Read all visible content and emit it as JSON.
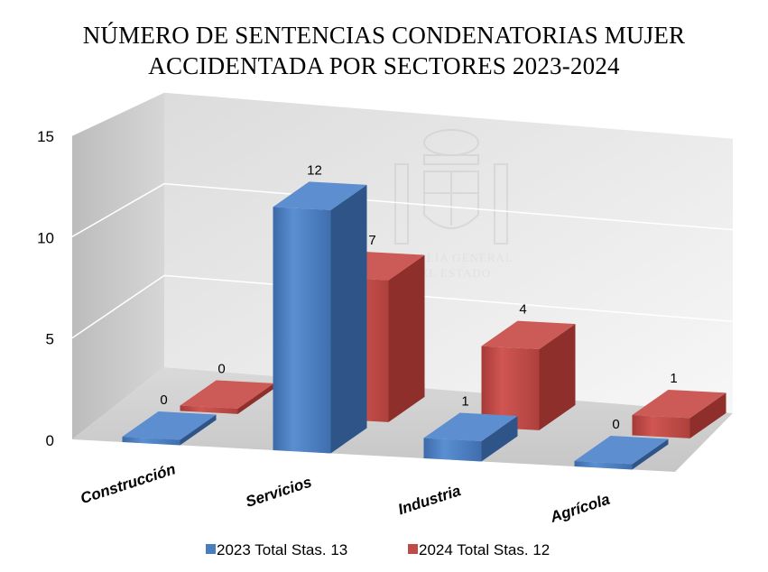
{
  "chart_data": {
    "type": "bar",
    "title_line1": "NÚMERO DE SENTENCIAS CONDENATORIAS MUJER",
    "title_line2": "ACCIDENTADA POR SECTORES 2023-2024",
    "categories": [
      "Construcción",
      "Servicios",
      "Industria",
      "Agrícola"
    ],
    "series": [
      {
        "name": "2023 Total Stas. 13",
        "values": [
          0,
          12,
          1,
          0
        ],
        "color": "#4a7ebb"
      },
      {
        "name": "2024 Total Stas. 12",
        "values": [
          0,
          7,
          4,
          1
        ],
        "color": "#be4b48"
      }
    ],
    "yticks": [
      0,
      5,
      10,
      15
    ],
    "ylim": [
      0,
      15
    ],
    "grid": true,
    "legend": "bottom",
    "watermark": {
      "line1": "FISCALÍA GENERAL",
      "line2": "DEL ESTADO"
    }
  }
}
